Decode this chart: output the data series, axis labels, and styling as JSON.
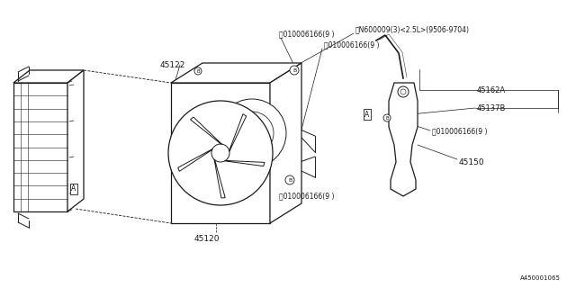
{
  "background_color": "#ffffff",
  "line_color": "#1a1a1a",
  "fig_width": 6.4,
  "fig_height": 3.2,
  "dpi": 100,
  "footer_text": "A450001065",
  "label_45122": "45122",
  "label_45120": "45120",
  "label_45150": "45150",
  "label_45162A": "45162A",
  "label_45137B": "45137B",
  "bolt_text": "010006166(9 )",
  "nut_text": "N600009(3)<2.5L>(9506-9704)",
  "label_A": "A"
}
